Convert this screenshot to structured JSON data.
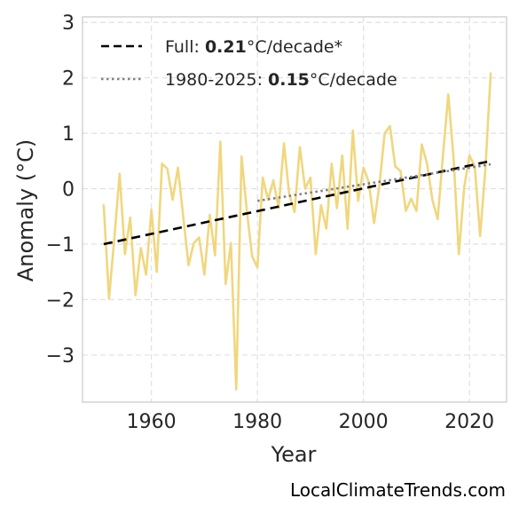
{
  "chart_data": {
    "type": "line",
    "xlabel": "Year",
    "ylabel": "Anomaly (°C)",
    "xlim": [
      1947,
      2027
    ],
    "ylim": [
      -3.85,
      3.1
    ],
    "xticks": [
      1960,
      1980,
      2000,
      2020
    ],
    "yticks": [
      -3,
      -2,
      -1,
      0,
      1,
      2,
      3
    ],
    "ytick_labels": [
      "−3",
      "−2",
      "−1",
      "0",
      "1",
      "2",
      "3"
    ],
    "grid": true,
    "legend_position": "top-left",
    "series": [
      {
        "kind": "anomaly",
        "color": "#f0d77e",
        "x": [
          1951,
          1952,
          1953,
          1954,
          1955,
          1956,
          1957,
          1958,
          1959,
          1960,
          1961,
          1962,
          1963,
          1964,
          1965,
          1966,
          1967,
          1968,
          1969,
          1970,
          1971,
          1972,
          1973,
          1974,
          1975,
          1976,
          1977,
          1978,
          1979,
          1980,
          1981,
          1982,
          1983,
          1984,
          1985,
          1986,
          1987,
          1988,
          1989,
          1990,
          1991,
          1992,
          1993,
          1994,
          1995,
          1996,
          1997,
          1998,
          1999,
          2000,
          2001,
          2002,
          2003,
          2004,
          2005,
          2006,
          2007,
          2008,
          2009,
          2010,
          2011,
          2012,
          2013,
          2014,
          2015,
          2016,
          2017,
          2018,
          2019,
          2020,
          2021,
          2022,
          2023,
          2024
        ],
        "y": [
          -0.3,
          -1.98,
          -0.9,
          0.27,
          -1.18,
          -0.52,
          -1.92,
          -1.07,
          -1.55,
          -0.38,
          -1.5,
          0.45,
          0.36,
          -0.2,
          0.38,
          -0.5,
          -1.38,
          -0.98,
          -0.88,
          -1.55,
          -0.47,
          -1.2,
          0.85,
          -1.72,
          -0.98,
          -3.62,
          0.58,
          -0.4,
          -1.22,
          -1.42,
          0.2,
          -0.2,
          0.15,
          -0.35,
          0.82,
          -0.1,
          -0.42,
          0.75,
          0.0,
          0.2,
          -1.18,
          -0.3,
          -0.72,
          0.45,
          -0.35,
          0.6,
          -0.72,
          1.05,
          -0.22,
          0.38,
          0.12,
          -0.62,
          0.05,
          1.0,
          1.13,
          0.4,
          0.32,
          -0.4,
          -0.18,
          -0.4,
          0.8,
          0.45,
          -0.2,
          -0.55,
          0.6,
          1.7,
          0.55,
          -1.18,
          0.02,
          0.6,
          0.4,
          -0.85,
          0.35,
          2.08
        ]
      },
      {
        "kind": "trend-full",
        "color": "#000000",
        "x": [
          1951,
          2024
        ],
        "y": [
          -1.0,
          0.5
        ]
      },
      {
        "kind": "trend-recent",
        "color": "#808080",
        "x": [
          1980,
          2024
        ],
        "y": [
          -0.22,
          0.44
        ]
      }
    ],
    "legend": [
      {
        "prefix": "Full: ",
        "value": "0.21",
        "suffix": "°C/decade*"
      },
      {
        "prefix": "1980-2025: ",
        "value": "0.15",
        "suffix": "°C/decade"
      }
    ]
  },
  "watermark": "LocalClimateTrends.com"
}
